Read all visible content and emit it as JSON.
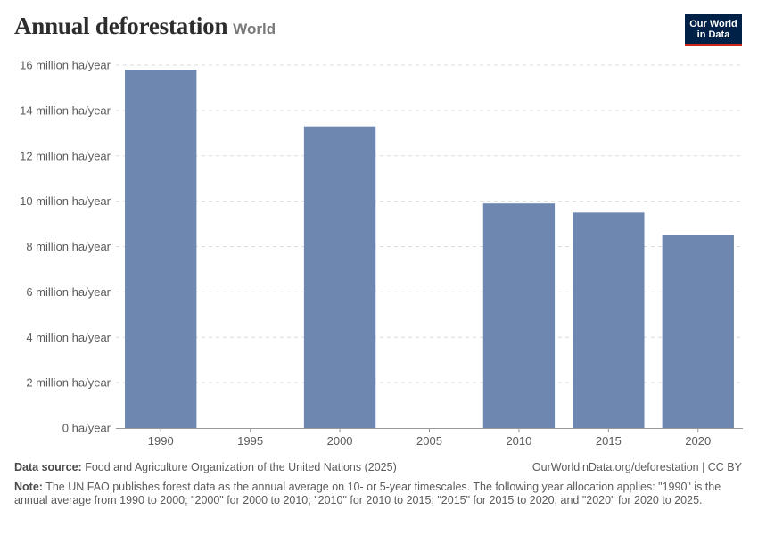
{
  "header": {
    "title": "Annual deforestation",
    "entity": "World",
    "logo_line1": "Our World",
    "logo_line2": "in Data"
  },
  "chart_data": {
    "type": "bar",
    "title": "Annual deforestation",
    "subtitle": "World",
    "x": [
      1990,
      1995,
      2000,
      2005,
      2010,
      2015,
      2020
    ],
    "x_tick_labels": [
      "1990",
      "1995",
      "2000",
      "2005",
      "2010",
      "2015",
      "2020"
    ],
    "bars": [
      {
        "year": 1990,
        "label": "1990",
        "value": 15.8
      },
      {
        "year": 2000,
        "label": "2000",
        "value": 13.3
      },
      {
        "year": 2010,
        "label": "2010",
        "value": 9.9
      },
      {
        "year": 2015,
        "label": "2015",
        "value": 9.5
      },
      {
        "year": 2020,
        "label": "2020",
        "value": 8.5
      }
    ],
    "unit": "million ha/year",
    "ylim": [
      0,
      16
    ],
    "yticks": [
      0,
      2,
      4,
      6,
      8,
      10,
      12,
      14,
      16
    ],
    "ytick_labels": [
      "0 ha/year",
      "2 million ha/year",
      "4 million ha/year",
      "6 million ha/year",
      "8 million ha/year",
      "10 million ha/year",
      "12 million ha/year",
      "14 million ha/year",
      "16 million ha/year"
    ],
    "grid": "horizontal dashed",
    "bar_color": "#6d87b0"
  },
  "footer": {
    "source_label": "Data source:",
    "source_text": "Food and Agriculture Organization of the United Nations (2025)",
    "url_text": "OurWorldinData.org/deforestation | CC BY",
    "note_label": "Note:",
    "note_text": "The UN FAO publishes forest data as the annual average on 10- or 5-year timescales. The following year allocation applies: \"1990\" is the annual average from 1990 to 2000; \"2000\" for 2000 to 2010; \"2010\" for 2010 to 2015; \"2015\" for 2015 to 2020, and \"2020\" for 2020 to 2025."
  }
}
